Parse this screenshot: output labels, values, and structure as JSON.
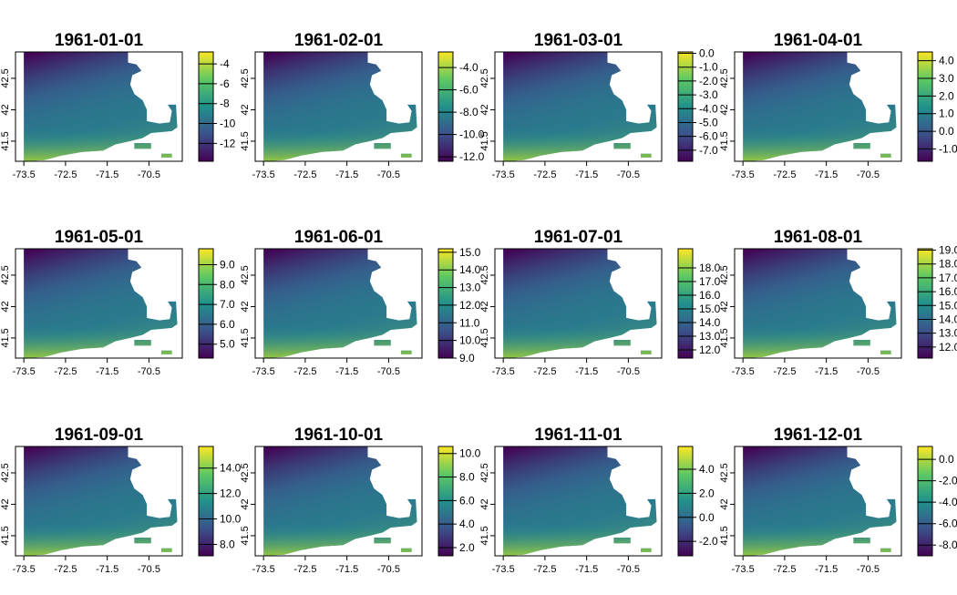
{
  "chart_data": {
    "type": "heatmap",
    "layout": "3 rows x 4 columns of raster map panels, each with its own vertical viridis color key to the right",
    "colormap": [
      "#440154",
      "#3b528b",
      "#21918c",
      "#5ec962",
      "#fde725"
    ],
    "colors": {
      "na_background": "#ffffff",
      "frame": "#000000"
    },
    "x_axis": {
      "ticks": [
        -73.5,
        -72.5,
        -71.5,
        -70.5
      ],
      "tick_labels": [
        "-73.5",
        "-72.5",
        "-71.5",
        "-70.5"
      ],
      "range": [
        -73.7,
        -69.7
      ]
    },
    "y_axis": {
      "ticks": [
        41.5,
        42,
        42.5
      ],
      "tick_labels": [
        "41.5",
        "42",
        "42.5"
      ],
      "range": [
        41.18,
        42.92
      ]
    },
    "panels": [
      {
        "title": "1961-01-01",
        "value_range": [
          -13.8,
          -2.8
        ],
        "legend_ticks": [
          -12,
          -10,
          -8,
          -6,
          -4
        ],
        "legend_labels": [
          "-12",
          "-10",
          "-8",
          "-6",
          "-4"
        ]
      },
      {
        "title": "1961-02-01",
        "value_range": [
          -12.4,
          -2.6
        ],
        "legend_ticks": [
          -12,
          -10,
          -8,
          -6,
          -4
        ],
        "legend_labels": [
          "-12.0",
          "-10.0",
          "-8.0",
          "-6.0",
          "-4.0"
        ]
      },
      {
        "title": "1961-03-01",
        "value_range": [
          -7.8,
          0.1
        ],
        "legend_ticks": [
          -7,
          -6,
          -5,
          -4,
          -3,
          -2,
          -1,
          0
        ],
        "legend_labels": [
          "-7.0",
          "-6.0",
          "-5.0",
          "-4.0",
          "-3.0",
          "-2.0",
          "-1.0",
          "0.0"
        ]
      },
      {
        "title": "1961-04-01",
        "value_range": [
          -1.7,
          4.5
        ],
        "legend_ticks": [
          -1,
          0,
          1,
          2,
          3,
          4
        ],
        "legend_labels": [
          "-1.0",
          "0.0",
          "1.0",
          "2.0",
          "3.0",
          "4.0"
        ]
      },
      {
        "title": "1961-05-01",
        "value_range": [
          4.3,
          9.8
        ],
        "legend_ticks": [
          5,
          6,
          7,
          8,
          9
        ],
        "legend_labels": [
          "5.0",
          "6.0",
          "7.0",
          "8.0",
          "9.0"
        ]
      },
      {
        "title": "1961-06-01",
        "value_range": [
          9.0,
          15.2
        ],
        "legend_ticks": [
          9,
          10,
          11,
          12,
          13,
          14,
          15
        ],
        "legend_labels": [
          "9.0",
          "10.0",
          "11.0",
          "12.0",
          "13.0",
          "14.0",
          "15.0"
        ]
      },
      {
        "title": "1961-07-01",
        "value_range": [
          11.4,
          19.4
        ],
        "legend_ticks": [
          12,
          13,
          14,
          15,
          16,
          17,
          18
        ],
        "legend_labels": [
          "12.0",
          "13.0",
          "14.0",
          "15.0",
          "16.0",
          "17.0",
          "18.0"
        ]
      },
      {
        "title": "1961-08-01",
        "value_range": [
          11.2,
          19.1
        ],
        "legend_ticks": [
          12,
          13,
          14,
          15,
          16,
          17,
          18,
          19
        ],
        "legend_labels": [
          "12.0",
          "13.0",
          "14.0",
          "15.0",
          "16.0",
          "17.0",
          "18.0",
          "19.0"
        ]
      },
      {
        "title": "1961-09-01",
        "value_range": [
          7.1,
          15.7
        ],
        "legend_ticks": [
          8,
          10,
          12,
          14
        ],
        "legend_labels": [
          "8.0",
          "10.0",
          "12.0",
          "14.0"
        ]
      },
      {
        "title": "1961-10-01",
        "value_range": [
          1.3,
          10.6
        ],
        "legend_ticks": [
          2,
          4,
          6,
          8,
          10
        ],
        "legend_labels": [
          "2.0",
          "4.0",
          "6.0",
          "8.0",
          "10.0"
        ]
      },
      {
        "title": "1961-11-01",
        "value_range": [
          -3.2,
          5.9
        ],
        "legend_ticks": [
          -2,
          0,
          2,
          4
        ],
        "legend_labels": [
          "-2.0",
          "0.0",
          "2.0",
          "4.0"
        ]
      },
      {
        "title": "1961-12-01",
        "value_range": [
          -9.0,
          1.2
        ],
        "legend_ticks": [
          -8,
          -6,
          -4,
          -2,
          0
        ],
        "legend_labels": [
          "-8.0",
          "-6.0",
          "-4.0",
          "-2.0",
          "0.0"
        ]
      }
    ]
  }
}
